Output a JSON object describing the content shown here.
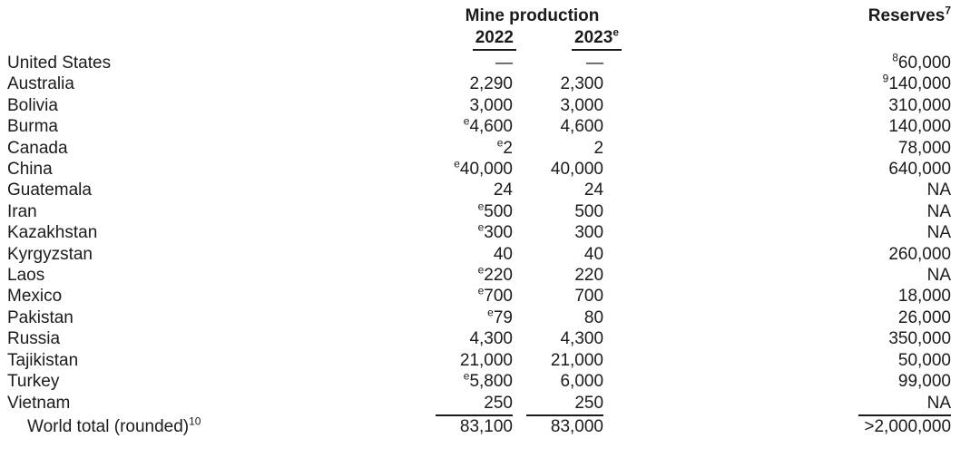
{
  "colors": {
    "text": "#1b1b1b",
    "background": "#ffffff",
    "rule": "#1b1b1b"
  },
  "table": {
    "header": {
      "mine_production": "Mine production",
      "col_2022": "2022",
      "col_2023": "2023",
      "col_2023_sup": "e",
      "reserves": "Reserves",
      "reserves_sup": "7"
    },
    "rows": [
      {
        "country": "United States",
        "prod_2022": "—",
        "prod_2023": "—",
        "reserves": "60,000",
        "reserves_sup": "8"
      },
      {
        "country": "Australia",
        "prod_2022": "2,290",
        "prod_2023": "2,300",
        "reserves": "140,000",
        "reserves_sup": "9"
      },
      {
        "country": "Bolivia",
        "prod_2022": "3,000",
        "prod_2023": "3,000",
        "reserves": "310,000"
      },
      {
        "country": "Burma",
        "prod_2022": "4,600",
        "prod_2022_sup": "e",
        "prod_2023": "4,600",
        "reserves": "140,000"
      },
      {
        "country": "Canada",
        "prod_2022": "2",
        "prod_2022_sup": "e",
        "prod_2023": "2",
        "reserves": "78,000"
      },
      {
        "country": "China",
        "prod_2022": "40,000",
        "prod_2022_sup": "e",
        "prod_2023": "40,000",
        "reserves": "640,000"
      },
      {
        "country": "Guatemala",
        "prod_2022": "24",
        "prod_2023": "24",
        "reserves": "NA"
      },
      {
        "country": "Iran",
        "prod_2022": "500",
        "prod_2022_sup": "e",
        "prod_2023": "500",
        "reserves": "NA"
      },
      {
        "country": "Kazakhstan",
        "prod_2022": "300",
        "prod_2022_sup": "e",
        "prod_2023": "300",
        "reserves": "NA"
      },
      {
        "country": "Kyrgyzstan",
        "prod_2022": "40",
        "prod_2023": "40",
        "reserves": "260,000"
      },
      {
        "country": "Laos",
        "prod_2022": "220",
        "prod_2022_sup": "e",
        "prod_2023": "220",
        "reserves": "NA"
      },
      {
        "country": "Mexico",
        "prod_2022": "700",
        "prod_2022_sup": "e",
        "prod_2023": "700",
        "reserves": "18,000"
      },
      {
        "country": "Pakistan",
        "prod_2022": "79",
        "prod_2022_sup": "e",
        "prod_2023": "80",
        "reserves": "26,000"
      },
      {
        "country": "Russia",
        "prod_2022": "4,300",
        "prod_2023": "4,300",
        "reserves": "350,000"
      },
      {
        "country": "Tajikistan",
        "prod_2022": "21,000",
        "prod_2023": "21,000",
        "reserves": "50,000"
      },
      {
        "country": "Turkey",
        "prod_2022": "5,800",
        "prod_2022_sup": "e",
        "prod_2023": "6,000",
        "reserves": "99,000"
      },
      {
        "country": "Vietnam",
        "prod_2022": "250",
        "prod_2023": "250",
        "reserves": "NA",
        "rule_below": true
      },
      {
        "country": "World total (rounded)",
        "country_sup": "10",
        "indent": true,
        "prod_2022": "83,100",
        "prod_2023": "83,000",
        "reserves": ">2,000,000"
      }
    ]
  }
}
